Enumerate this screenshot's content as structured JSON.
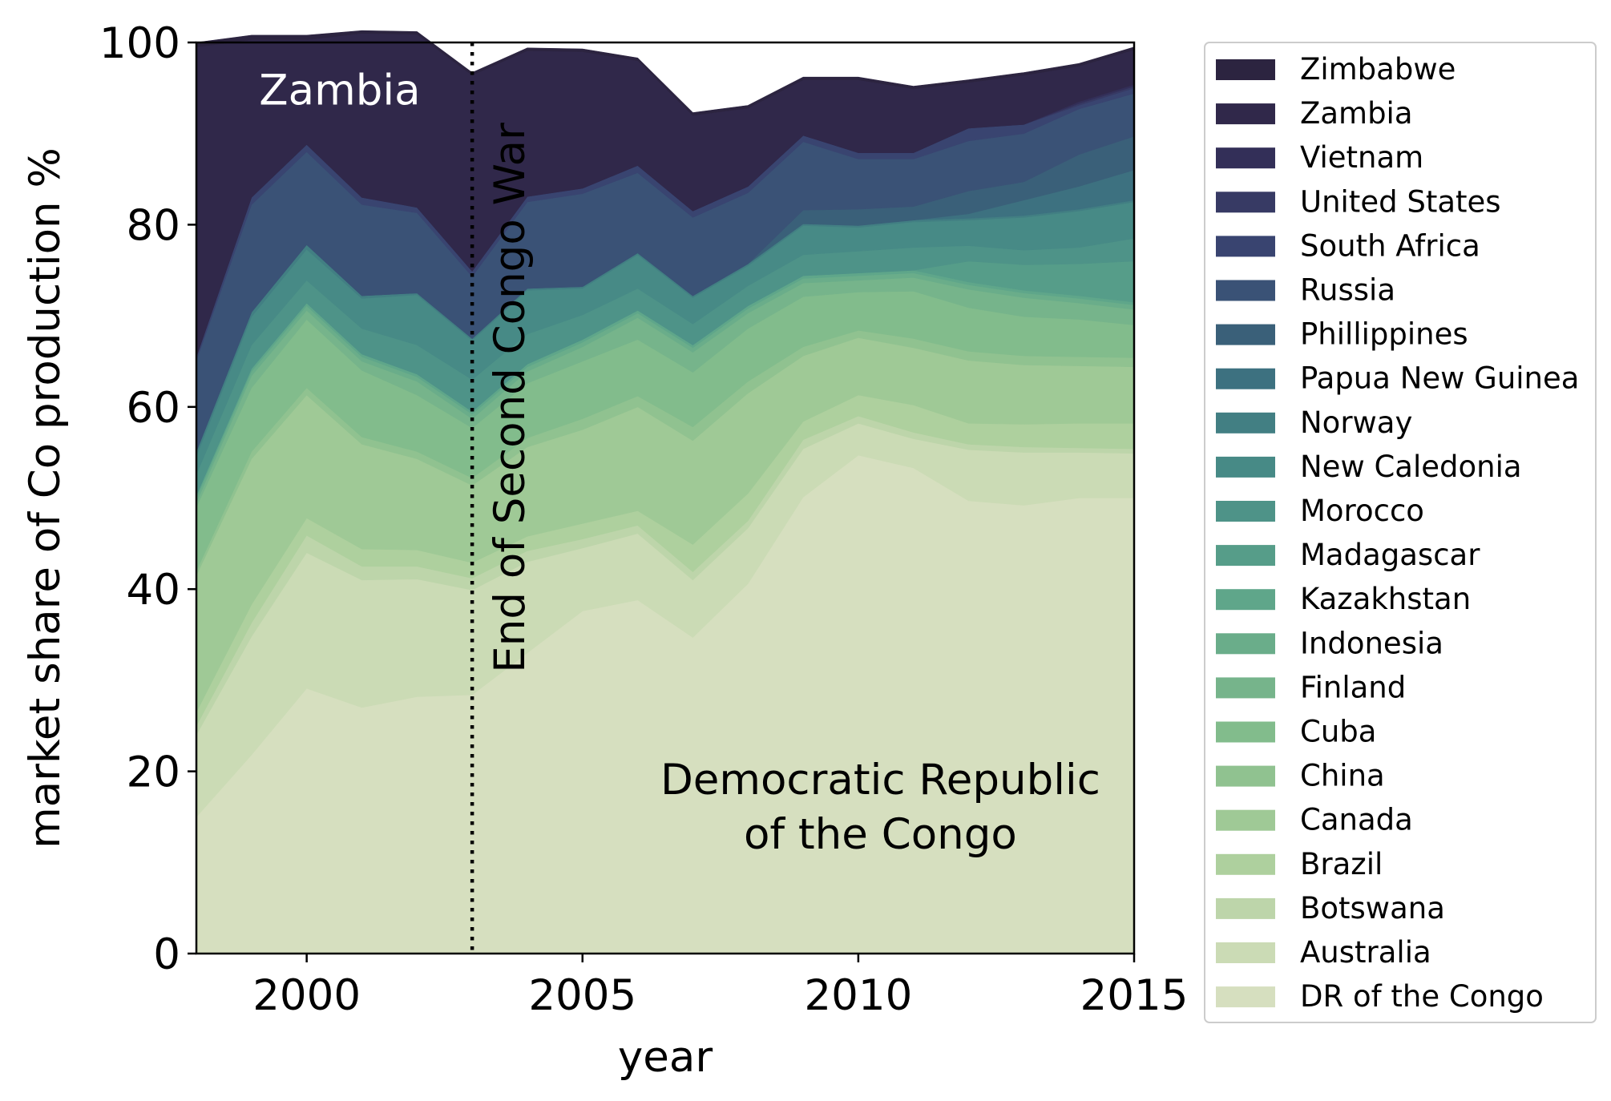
{
  "chart_data": {
    "type": "area",
    "stacked": true,
    "xlabel": "year",
    "ylabel": "market share of Co production %",
    "xlim": [
      1998,
      2015
    ],
    "ylim": [
      0,
      100
    ],
    "xticks": [
      "2000",
      "2005",
      "2010",
      "2015"
    ],
    "yticks": [
      "0",
      "20",
      "40",
      "60",
      "80",
      "100"
    ],
    "grid": false,
    "legend_position": "outside-right",
    "x": [
      1998,
      1999,
      2000,
      2001,
      2002,
      2003,
      2004,
      2005,
      2006,
      2007,
      2008,
      2009,
      2010,
      2011,
      2012,
      2013,
      2014,
      2015
    ],
    "series": [
      {
        "name": "DR of the Congo",
        "color": "#d6dfbf",
        "values": [
          15,
          21.8,
          29.1,
          27,
          28.2,
          28.4,
          33,
          37.6,
          38.8,
          34.7,
          40.6,
          50.1,
          54.7,
          53.3,
          49.7,
          49.2,
          50,
          50
        ]
      },
      {
        "name": "Australia",
        "color": "#cbdbb5",
        "values": [
          9,
          13,
          14.9,
          14,
          12.9,
          11.5,
          10,
          6.9,
          7.3,
          6.3,
          6.1,
          5.3,
          3.5,
          3.2,
          5.6,
          5.8,
          5,
          4.9
        ]
      },
      {
        "name": "Botswana",
        "color": "#bdd5aa",
        "values": [
          1,
          1.5,
          1.9,
          1.5,
          1.4,
          1.3,
          1.2,
          1,
          0.9,
          0.9,
          0.8,
          1,
          0.8,
          0.7,
          0.6,
          0.6,
          0.5,
          0.5
        ]
      },
      {
        "name": "Brazil",
        "color": "#aed09e",
        "values": [
          1.5,
          2,
          1.9,
          1.9,
          1.8,
          1.7,
          1.6,
          1.7,
          1.6,
          3,
          3,
          2,
          2.3,
          3,
          2.3,
          2.5,
          2.7,
          2.8
        ]
      },
      {
        "name": "Canada",
        "color": "#9fc996",
        "values": [
          15,
          16,
          13.5,
          11.5,
          10,
          8.5,
          9.8,
          10.3,
          11.4,
          11.4,
          11,
          7.2,
          6.3,
          6.3,
          6.9,
          6.5,
          6.3,
          6.2
        ]
      },
      {
        "name": "China",
        "color": "#90c290",
        "values": [
          0.5,
          0.8,
          0.8,
          0.8,
          0.8,
          0.8,
          1,
          1.2,
          1.2,
          1.5,
          1.3,
          1,
          0.8,
          1,
          1,
          1,
          1,
          1
        ]
      },
      {
        "name": "Cuba",
        "color": "#82bc8c",
        "values": [
          7,
          7,
          7.5,
          7.3,
          6.2,
          5.5,
          6,
          6.3,
          6.2,
          6,
          5.8,
          5.5,
          4.2,
          5.2,
          4.8,
          4.3,
          4.1,
          3.6
        ]
      },
      {
        "name": "Finland",
        "color": "#76b48b",
        "values": [
          0.5,
          1.3,
          1,
          1,
          1.5,
          1,
          1.3,
          1.6,
          2.4,
          2.2,
          1.7,
          1.5,
          1.3,
          1.5,
          2,
          2.1,
          1.8,
          1.7
        ]
      },
      {
        "name": "Indonesia",
        "color": "#6aad8a",
        "values": [
          0.5,
          0.5,
          0.5,
          0.5,
          0.5,
          0.5,
          0.5,
          0.5,
          0.5,
          0.5,
          0.5,
          0.5,
          0.5,
          0.5,
          0.5,
          0.5,
          0.5,
          0.5
        ]
      },
      {
        "name": "Kazakhstan",
        "color": "#5fa68a",
        "values": [
          0.3,
          0.3,
          0.3,
          0.3,
          0.3,
          0.3,
          0.3,
          0.3,
          0.3,
          0.3,
          0.3,
          0.3,
          0.3,
          0.3,
          0.3,
          0.3,
          0.3,
          0.3
        ]
      },
      {
        "name": "Madagascar",
        "color": "#569d89",
        "values": [
          0,
          0,
          0,
          0,
          0,
          0,
          0,
          0,
          0,
          0,
          0,
          0,
          0,
          0,
          2.3,
          2.8,
          3.5,
          4.5
        ]
      },
      {
        "name": "Morocco",
        "color": "#4e9388",
        "values": [
          2.3,
          2.6,
          2.5,
          2.8,
          3.2,
          3.5,
          3.3,
          2.7,
          2.4,
          2.3,
          2.2,
          2.3,
          2.4,
          2.5,
          1.7,
          1.6,
          1.8,
          2.5
        ]
      },
      {
        "name": "New Caledonia",
        "color": "#478a86",
        "values": [
          2,
          3.1,
          3.4,
          3.3,
          5.5,
          4.3,
          4.8,
          2.9,
          3.7,
          2.9,
          2.2,
          3.2,
          2.6,
          2.8,
          2.8,
          3.6,
          4,
          4
        ]
      },
      {
        "name": "Norway",
        "color": "#427f83",
        "values": [
          0.5,
          0.5,
          0.5,
          0.3,
          0.2,
          0.2,
          0.2,
          0.2,
          0.2,
          0.2,
          0.2,
          0.2,
          0.2,
          0.2,
          0.2,
          0.2,
          0.2,
          0.2
        ]
      },
      {
        "name": "Papua New Guinea",
        "color": "#3d7180",
        "values": [
          0,
          0,
          0,
          0,
          0,
          0,
          0,
          0,
          0,
          0,
          0,
          0,
          0,
          0,
          0.5,
          1.7,
          2.5,
          3.3
        ]
      },
      {
        "name": "Phillippines",
        "color": "#3a6079",
        "values": [
          0,
          0,
          0,
          0,
          0,
          0,
          0,
          0,
          0,
          0,
          0,
          1.5,
          1.8,
          1.5,
          2.5,
          2,
          3.5,
          3.7
        ]
      },
      {
        "name": "Russia",
        "color": "#3a5276",
        "values": [
          10,
          11.8,
          10.2,
          10,
          8.8,
          6.8,
          9.5,
          10.2,
          8.8,
          8.6,
          7.8,
          7.5,
          5.5,
          5.2,
          5.5,
          5.3,
          5,
          4.7
        ]
      },
      {
        "name": "South Africa",
        "color": "#394470",
        "values": [
          0.4,
          0.8,
          0.8,
          0.8,
          0.6,
          0.6,
          0.6,
          0.6,
          0.8,
          0.7,
          0.7,
          0.7,
          0.7,
          0.7,
          1.4,
          1,
          0.4,
          0.6
        ]
      },
      {
        "name": "United States",
        "color": "#373a64",
        "values": [
          0,
          0,
          0,
          0,
          0,
          0,
          0,
          0,
          0,
          0,
          0,
          0,
          0,
          0,
          0,
          0,
          0.2,
          0.2
        ]
      },
      {
        "name": "Vietnam",
        "color": "#332f58",
        "values": [
          0,
          0,
          0,
          0,
          0,
          0,
          0,
          0,
          0,
          0,
          0,
          0,
          0,
          0,
          0,
          0,
          0.2,
          0.2
        ]
      },
      {
        "name": "Zambia",
        "color": "#30284a",
        "values": [
          34,
          17.3,
          11.5,
          18,
          19,
          21.5,
          16,
          15,
          11.5,
          10.5,
          8.6,
          6.1,
          8,
          7,
          5,
          5.4,
          3.9,
          3.8
        ]
      },
      {
        "name": "Zimbabwe",
        "color": "#2c2440",
        "values": [
          0.5,
          0.5,
          0.5,
          0.3,
          0.3,
          0.3,
          0.3,
          0.3,
          0.3,
          0.3,
          0.3,
          0.3,
          0.3,
          0.3,
          0.3,
          0.3,
          0.3,
          0.3
        ]
      }
    ],
    "vline": {
      "x": 2003,
      "style": "dotted",
      "label": "End of Second Congo War"
    },
    "annotations": [
      {
        "text": "Zambia",
        "x": 2000.6,
        "y": 93.2,
        "color": "#ffffff"
      },
      {
        "text": "Democratic Republic",
        "x": 2010.4,
        "y": 17.5,
        "color": "#000000"
      },
      {
        "text": "of the Congo",
        "x": 2010.4,
        "y": 11.5,
        "color": "#000000"
      }
    ],
    "legend_order": [
      "Zimbabwe",
      "Zambia",
      "Vietnam",
      "United States",
      "South Africa",
      "Russia",
      "Phillippines",
      "Papua New Guinea",
      "Norway",
      "New Caledonia",
      "Morocco",
      "Madagascar",
      "Kazakhstan",
      "Indonesia",
      "Finland",
      "Cuba",
      "China",
      "Canada",
      "Brazil",
      "Botswana",
      "Australia",
      "DR of the Congo"
    ]
  }
}
